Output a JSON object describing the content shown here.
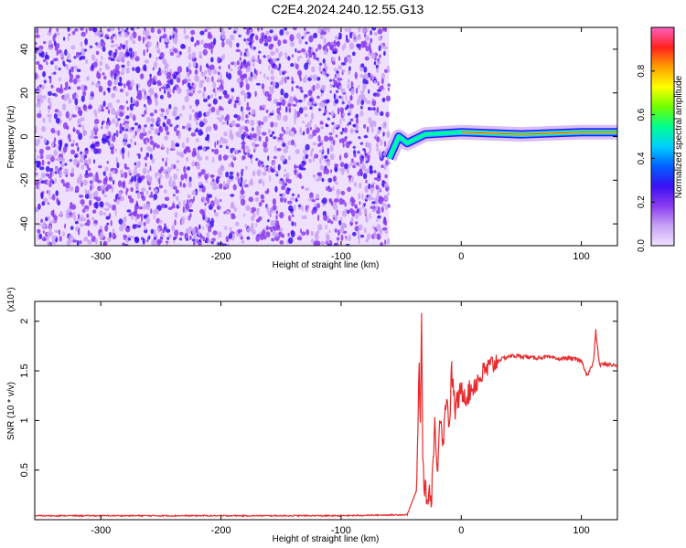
{
  "title": "C2E4.2024.240.12.55.G13",
  "colors": {
    "snr_line": "#e8292c",
    "colormap": [
      "#f0e0ff",
      "#c9a3f5",
      "#8a3cf0",
      "#3a10f5",
      "#0060ff",
      "#00d0ff",
      "#00ff90",
      "#70ff00",
      "#ffff00",
      "#ffa000",
      "#ff2020",
      "#ff60c0"
    ]
  },
  "chart_data": [
    {
      "type": "heatmap",
      "xlabel": "Height of straight line (km)",
      "ylabel": "Frequency (Hz)",
      "xlim": [
        -355,
        130
      ],
      "ylim": [
        -50,
        50
      ],
      "xticks": [
        -300,
        -200,
        -100,
        0,
        100
      ],
      "yticks": [
        -40,
        -20,
        0,
        20,
        40
      ],
      "data_extent_x": [
        -355,
        -60
      ],
      "features": [
        {
          "description": "dense scattered noise speckle",
          "x_range": [
            -355,
            -60
          ],
          "y_range": [
            -50,
            50
          ]
        },
        {
          "description": "strong carrier band",
          "x": [
            -60,
            -52,
            -45,
            -30,
            0,
            50,
            100,
            130
          ],
          "y": [
            -10,
            0,
            -3,
            1,
            2,
            1,
            2,
            2
          ]
        }
      ],
      "colorbar": {
        "label": "Normalized spectral amplitude",
        "range": [
          0,
          1
        ],
        "ticks": [
          0.0,
          0.2,
          0.4,
          0.6,
          0.8
        ]
      }
    },
    {
      "type": "line",
      "xlabel": "Height of straight line (km)",
      "ylabel": "SNR (10 * v/v)",
      "y_multiplier": "(x10⁴)",
      "xlim": [
        -355,
        130
      ],
      "ylim": [
        0,
        2.2
      ],
      "xticks": [
        -300,
        -200,
        -100,
        0,
        100
      ],
      "yticks": [
        0.5,
        1.0,
        1.5,
        2.0
      ],
      "series": [
        {
          "x": [
            -355,
            -300,
            -200,
            -100,
            -45,
            -37,
            -35,
            -34,
            -33,
            -32,
            -30,
            -28,
            -26,
            -25,
            -22,
            -20,
            -18,
            -15,
            -12,
            -10,
            -8,
            -5,
            -3,
            0,
            5,
            10,
            20,
            30,
            40,
            50,
            60,
            70,
            80,
            90,
            100,
            105,
            110,
            112,
            115,
            120,
            130
          ],
          "y": [
            0.04,
            0.04,
            0.04,
            0.04,
            0.05,
            0.3,
            1.6,
            0.9,
            2.2,
            0.5,
            0.3,
            0.2,
            0.3,
            0.15,
            1.0,
            0.4,
            1.1,
            0.8,
            1.3,
            0.9,
            1.5,
            1.1,
            1.2,
            1.3,
            1.25,
            1.35,
            1.5,
            1.6,
            1.65,
            1.65,
            1.63,
            1.64,
            1.62,
            1.63,
            1.6,
            1.45,
            1.58,
            1.9,
            1.56,
            1.57,
            1.55
          ]
        }
      ]
    }
  ]
}
